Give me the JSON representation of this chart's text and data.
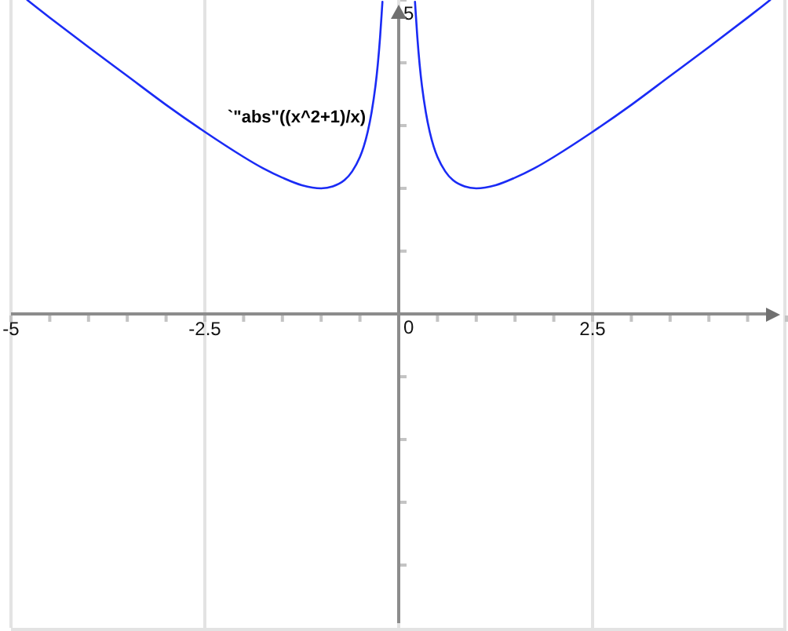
{
  "chart_data": {
    "type": "line",
    "x": [
      -4.79,
      -4.5,
      -4,
      -3.5,
      -3,
      -2.5,
      -2,
      -1.75,
      -1.5,
      -1.25,
      -1,
      -0.85,
      -0.7,
      -0.6,
      -0.5,
      -0.45,
      -0.4,
      -0.35,
      -0.3,
      -0.27,
      -0.24,
      -0.21,
      0,
      0.21,
      0.24,
      0.27,
      0.3,
      0.35,
      0.4,
      0.45,
      0.5,
      0.6,
      0.7,
      0.85,
      1,
      1.25,
      1.5,
      1.75,
      2,
      2.5,
      3,
      3.5,
      4,
      4.5,
      4.79
    ],
    "series": [
      {
        "name": "`\"abs\"((x^2+1)/x)",
        "color": "#1a2bf5",
        "values": [
          5,
          4.72,
          4.25,
          3.79,
          3.33,
          2.9,
          2.5,
          2.32,
          2.17,
          2.05,
          2,
          2.03,
          2.13,
          2.27,
          2.5,
          2.67,
          2.9,
          3.21,
          3.63,
          3.97,
          4.41,
          4.97,
          null,
          4.97,
          4.41,
          3.97,
          3.63,
          3.21,
          2.9,
          2.67,
          2.5,
          2.27,
          2.13,
          2.03,
          2,
          2.05,
          2.17,
          2.32,
          2.5,
          2.9,
          3.33,
          3.79,
          4.25,
          4.72,
          5
        ]
      }
    ],
    "xlim": [
      -5,
      5
    ],
    "ylim": [
      -5,
      5
    ],
    "xticks": [
      -5,
      -2.5,
      {
        "value": 0,
        "label": null
      },
      2.5,
      {
        "value": 5,
        "label": null
      }
    ],
    "yticks": [
      {
        "value": -4,
        "label": null
      },
      {
        "value": -3,
        "label": null
      },
      {
        "value": -2,
        "label": null
      },
      {
        "value": -1,
        "label": null
      },
      0,
      {
        "value": 1,
        "label": null
      },
      {
        "value": 2,
        "label": null
      },
      {
        "value": 3,
        "label": null
      },
      {
        "value": 4,
        "label": null
      },
      5
    ],
    "grid": "x"
  }
}
